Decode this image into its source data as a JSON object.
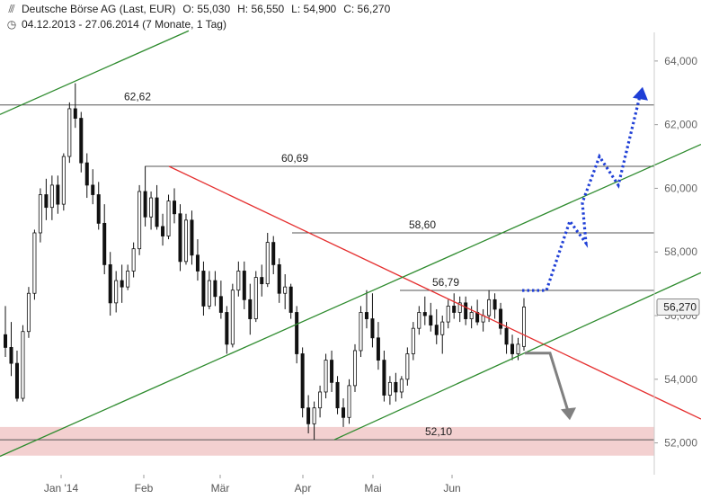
{
  "header": {
    "icon": "candlestick-icon",
    "instrument": "Deutsche Börse AG (Last, EUR)",
    "open": "O: 55,030",
    "high": "H: 56,550",
    "low": "L: 54,900",
    "close": "C: 56,270",
    "period_icon": "clock-icon",
    "period": "04.12.2013 - 27.06.2014 (7 Monate, 1 Tag)"
  },
  "chart_data": {
    "type": "candlestick",
    "x_axis": {
      "labels": [
        "Jan '14",
        "Feb",
        "Mär",
        "Apr",
        "Mai",
        "Jun"
      ]
    },
    "y_axis": {
      "side": "right",
      "ticks": [
        "52,000",
        "54,000",
        "56,000",
        "58,000",
        "60,000",
        "62,000",
        "64,000"
      ],
      "ylim": [
        51.0,
        64.9
      ]
    },
    "last_price_label": "56,270",
    "levels": [
      {
        "value": 62.62,
        "label": "62,62"
      },
      {
        "value": 60.69,
        "label": "60,69"
      },
      {
        "value": 58.6,
        "label": "58,60"
      },
      {
        "value": 56.79,
        "label": "56,79"
      },
      {
        "value": 52.1,
        "label": "52,10"
      }
    ],
    "support_zone": [
      51.6,
      52.5
    ],
    "colors": {
      "candle": "#111111",
      "resistance_line": "#e53030",
      "channel": "#2e8b2e",
      "level": "#555555",
      "zone": "#f3d0d0",
      "bull_path": "#1f3fd6",
      "bear_path": "#808080"
    },
    "ohlc": [
      [
        55.4,
        56.3,
        54.7,
        55.0
      ],
      [
        55.0,
        55.8,
        54.1,
        54.5
      ],
      [
        54.5,
        54.9,
        53.3,
        53.4
      ],
      [
        53.4,
        55.7,
        53.3,
        55.5
      ],
      [
        55.5,
        56.9,
        55.3,
        56.7
      ],
      [
        56.7,
        58.7,
        56.5,
        58.6
      ],
      [
        58.6,
        60.0,
        58.3,
        59.8
      ],
      [
        59.8,
        60.3,
        59.0,
        59.4
      ],
      [
        59.4,
        60.4,
        59.0,
        60.1
      ],
      [
        60.1,
        60.4,
        59.2,
        59.5
      ],
      [
        59.5,
        61.1,
        59.3,
        61.0
      ],
      [
        61.0,
        62.7,
        60.8,
        62.5
      ],
      [
        62.5,
        63.3,
        61.9,
        62.2
      ],
      [
        62.2,
        62.4,
        60.5,
        60.8
      ],
      [
        60.8,
        61.1,
        59.7,
        60.1
      ],
      [
        60.1,
        60.6,
        59.5,
        59.8
      ],
      [
        59.8,
        60.2,
        58.7,
        58.9
      ],
      [
        58.9,
        59.5,
        57.3,
        57.6
      ],
      [
        57.6,
        58.0,
        56.0,
        56.4
      ],
      [
        56.4,
        57.4,
        56.1,
        57.1
      ],
      [
        57.1,
        57.6,
        56.4,
        56.9
      ],
      [
        56.9,
        57.6,
        56.8,
        57.4
      ],
      [
        57.4,
        58.3,
        57.2,
        58.1
      ],
      [
        58.1,
        60.1,
        57.9,
        59.9
      ],
      [
        59.9,
        60.7,
        58.8,
        59.1
      ],
      [
        59.1,
        59.9,
        58.7,
        59.7
      ],
      [
        59.7,
        60.1,
        58.7,
        58.8
      ],
      [
        58.8,
        59.2,
        58.2,
        58.5
      ],
      [
        58.5,
        59.8,
        58.4,
        59.6
      ],
      [
        59.6,
        60.0,
        58.9,
        59.2
      ],
      [
        59.2,
        59.5,
        57.4,
        57.7
      ],
      [
        57.7,
        59.2,
        57.6,
        59.0
      ],
      [
        59.0,
        59.3,
        57.6,
        57.9
      ],
      [
        57.9,
        58.4,
        57.1,
        57.4
      ],
      [
        57.4,
        57.7,
        56.0,
        56.3
      ],
      [
        56.3,
        57.4,
        56.2,
        57.1
      ],
      [
        57.1,
        57.4,
        56.3,
        56.6
      ],
      [
        56.6,
        57.1,
        55.9,
        56.1
      ],
      [
        56.1,
        56.3,
        54.8,
        55.1
      ],
      [
        55.1,
        57.0,
        55.0,
        56.8
      ],
      [
        56.8,
        57.7,
        56.6,
        57.4
      ],
      [
        57.4,
        57.7,
        56.2,
        56.5
      ],
      [
        56.5,
        57.0,
        55.4,
        55.9
      ],
      [
        55.9,
        57.4,
        55.8,
        57.2
      ],
      [
        57.2,
        57.6,
        56.6,
        57.0
      ],
      [
        57.0,
        58.6,
        56.9,
        58.3
      ],
      [
        58.3,
        58.5,
        57.3,
        57.6
      ],
      [
        57.6,
        57.8,
        56.4,
        56.7
      ],
      [
        56.7,
        57.3,
        56.2,
        56.9
      ],
      [
        56.9,
        57.0,
        55.9,
        56.1
      ],
      [
        56.1,
        56.3,
        54.5,
        54.8
      ],
      [
        54.8,
        55.0,
        52.8,
        53.1
      ],
      [
        53.1,
        53.5,
        52.3,
        52.6
      ],
      [
        52.6,
        53.3,
        52.1,
        53.1
      ],
      [
        53.1,
        53.8,
        52.8,
        53.6
      ],
      [
        53.6,
        54.8,
        53.4,
        54.6
      ],
      [
        54.6,
        54.9,
        53.6,
        53.9
      ],
      [
        53.9,
        54.1,
        52.9,
        53.1
      ],
      [
        53.1,
        53.4,
        52.5,
        52.8
      ],
      [
        52.8,
        54.0,
        52.6,
        53.8
      ],
      [
        53.8,
        55.1,
        53.6,
        54.9
      ],
      [
        54.9,
        56.3,
        54.7,
        56.1
      ],
      [
        56.1,
        56.8,
        55.6,
        55.9
      ],
      [
        55.9,
        56.7,
        55.0,
        55.3
      ],
      [
        55.3,
        55.8,
        54.3,
        54.6
      ],
      [
        54.6,
        54.9,
        53.3,
        53.5
      ],
      [
        53.5,
        54.1,
        53.2,
        53.9
      ],
      [
        53.9,
        54.2,
        53.3,
        53.6
      ],
      [
        53.6,
        54.1,
        53.4,
        54.0
      ],
      [
        54.0,
        55.0,
        53.8,
        54.8
      ],
      [
        54.8,
        55.8,
        54.6,
        55.6
      ],
      [
        55.6,
        56.3,
        55.4,
        56.1
      ],
      [
        56.1,
        56.6,
        55.7,
        56.0
      ],
      [
        56.0,
        56.4,
        55.5,
        55.7
      ],
      [
        55.7,
        56.2,
        55.1,
        55.4
      ],
      [
        55.4,
        56.0,
        54.8,
        55.8
      ],
      [
        55.8,
        56.5,
        55.6,
        56.3
      ],
      [
        56.3,
        56.7,
        55.9,
        56.1
      ],
      [
        56.1,
        56.6,
        55.8,
        56.4
      ],
      [
        56.4,
        56.6,
        55.7,
        55.9
      ],
      [
        55.9,
        56.3,
        55.6,
        56.1
      ],
      [
        56.1,
        56.5,
        55.7,
        55.8
      ],
      [
        55.8,
        56.2,
        55.5,
        56.0
      ],
      [
        56.0,
        56.8,
        55.8,
        56.5
      ],
      [
        56.5,
        56.7,
        55.9,
        56.2
      ],
      [
        56.2,
        56.4,
        55.4,
        55.6
      ],
      [
        55.6,
        55.8,
        54.8,
        55.1
      ],
      [
        55.1,
        55.4,
        54.6,
        54.8
      ],
      [
        54.8,
        55.3,
        54.6,
        55.1
      ],
      [
        55.03,
        56.55,
        54.9,
        56.27
      ]
    ],
    "annotations": [
      {
        "type": "horizontal_levels",
        "labels": [
          "62,62",
          "60,69",
          "58,60",
          "56,79",
          "52,10"
        ]
      },
      {
        "type": "descending_resistance_line",
        "color": "red"
      },
      {
        "type": "ascending_channel",
        "color": "green"
      },
      {
        "type": "scenario_up",
        "color": "blue",
        "style": "dotted"
      },
      {
        "type": "scenario_down",
        "color": "gray"
      }
    ]
  }
}
